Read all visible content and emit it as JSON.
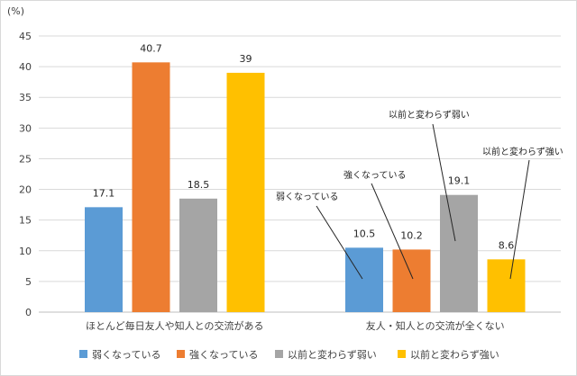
{
  "chart_data": {
    "type": "bar",
    "unit": "(%)",
    "ylim": [
      0,
      45
    ],
    "yticks": [
      0,
      5,
      10,
      15,
      20,
      25,
      30,
      35,
      40,
      45
    ],
    "grid": true,
    "legend_position": "bottom",
    "categories": [
      "ほとんど毎日友人や知人との交流がある",
      "友人・知人との交流が全くない"
    ],
    "series": [
      {
        "name": "弱くなっている",
        "color": "#5b9bd5",
        "values": [
          17.1,
          10.5
        ],
        "value_labels": [
          "17.1",
          "10.5"
        ]
      },
      {
        "name": "強くなっている",
        "color": "#ed7d31",
        "values": [
          40.7,
          10.2
        ],
        "value_labels": [
          "40.7",
          "10.2"
        ]
      },
      {
        "name": "以前と変わらず弱い",
        "color": "#a5a5a5",
        "values": [
          18.5,
          19.1
        ],
        "value_labels": [
          "18.5",
          "19.1"
        ]
      },
      {
        "name": "以前と変わらず強い",
        "color": "#ffc000",
        "values": [
          39,
          8.6
        ],
        "value_labels": [
          "39",
          "8.6"
        ]
      }
    ],
    "annotations": [
      {
        "text": "弱くなっている",
        "category_index": 1,
        "series_index": 0
      },
      {
        "text": "強くなっている",
        "category_index": 1,
        "series_index": 1
      },
      {
        "text": "以前と変わらず弱い",
        "category_index": 1,
        "series_index": 2
      },
      {
        "text": "以前と変わらず強い",
        "category_index": 1,
        "series_index": 3
      }
    ]
  }
}
